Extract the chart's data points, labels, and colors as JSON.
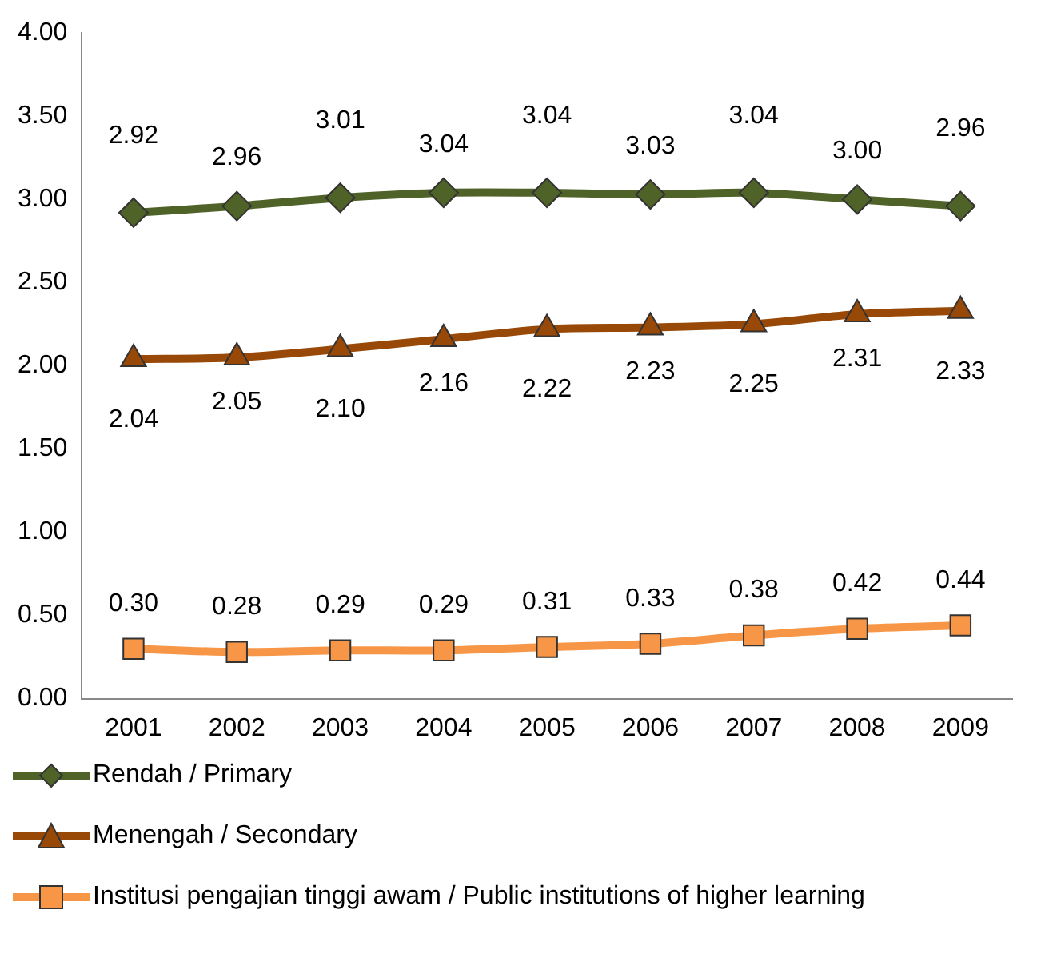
{
  "chart_data": {
    "type": "line",
    "categories": [
      "2001",
      "2002",
      "2003",
      "2004",
      "2005",
      "2006",
      "2007",
      "2008",
      "2009"
    ],
    "series": [
      {
        "name": "Rendah / Primary",
        "color": "#4f6228",
        "marker": "diamond",
        "values": [
          2.92,
          2.96,
          3.01,
          3.04,
          3.04,
          3.03,
          3.04,
          3.0,
          2.96
        ],
        "value_labels": [
          "2.92",
          "2.96",
          "3.01",
          "3.04",
          "3.04",
          "3.03",
          "3.04",
          "3.00",
          "2.96"
        ]
      },
      {
        "name": "Menengah / Secondary",
        "color": "#984807",
        "marker": "triangle",
        "values": [
          2.04,
          2.05,
          2.1,
          2.16,
          2.22,
          2.23,
          2.25,
          2.31,
          2.33
        ],
        "value_labels": [
          "2.04",
          "2.05",
          "2.10",
          "2.16",
          "2.22",
          "2.23",
          "2.25",
          "2.31",
          "2.33"
        ]
      },
      {
        "name": "Institusi pengajian tinggi awam / Public institutions of higher learning",
        "color": "#f79646",
        "marker": "square",
        "values": [
          0.3,
          0.28,
          0.29,
          0.29,
          0.31,
          0.33,
          0.38,
          0.42,
          0.44
        ],
        "value_labels": [
          "0.30",
          "0.28",
          "0.29",
          "0.29",
          "0.31",
          "0.33",
          "0.38",
          "0.42",
          "0.44"
        ]
      }
    ],
    "ylim": [
      0,
      4
    ],
    "yticks": [
      "0.00",
      "0.50",
      "1.00",
      "1.50",
      "2.00",
      "2.50",
      "3.00",
      "3.50",
      "4.00"
    ],
    "grid": false,
    "legend": "bottom"
  }
}
